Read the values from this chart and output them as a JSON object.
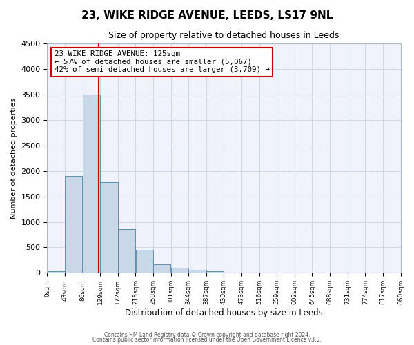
{
  "title": "23, WIKE RIDGE AVENUE, LEEDS, LS17 9NL",
  "subtitle": "Size of property relative to detached houses in Leeds",
  "xlabel": "Distribution of detached houses by size in Leeds",
  "ylabel": "Number of detached properties",
  "bin_edges": [
    0,
    43,
    86,
    129,
    172,
    215,
    258,
    301,
    344,
    387,
    430,
    473,
    516,
    559,
    602,
    645,
    688,
    731,
    774,
    817,
    860
  ],
  "counts": [
    30,
    1900,
    3500,
    1780,
    860,
    450,
    170,
    95,
    55,
    30,
    10,
    5,
    2,
    0,
    0,
    0,
    0,
    0,
    0,
    0
  ],
  "bar_color": "#c8d8e8",
  "bar_edge_color": "#6090b0",
  "vline_x": 125,
  "vline_color": "#cc0000",
  "annotation_line1": "23 WIKE RIDGE AVENUE: 125sqm",
  "annotation_line2": "← 57% of detached houses are smaller (5,067)",
  "annotation_line3": "42% of semi-detached houses are larger (3,709) →",
  "annotation_box_color": "#ffffff",
  "annotation_box_edge_color": "#cc0000",
  "ylim": [
    0,
    4500
  ],
  "yticks": [
    0,
    500,
    1000,
    1500,
    2000,
    2500,
    3000,
    3500,
    4000,
    4500
  ],
  "tick_labels": [
    "0sqm",
    "43sqm",
    "86sqm",
    "129sqm",
    "172sqm",
    "215sqm",
    "258sqm",
    "301sqm",
    "344sqm",
    "387sqm",
    "430sqm",
    "473sqm",
    "516sqm",
    "559sqm",
    "602sqm",
    "645sqm",
    "688sqm",
    "731sqm",
    "774sqm",
    "817sqm",
    "860sqm"
  ],
  "footer1": "Contains HM Land Registry data © Crown copyright and database right 2024.",
  "footer2": "Contains public sector information licensed under the Open Government Licence v3.0.",
  "grid_color": "#d0d8e8",
  "background_color": "#ffffff",
  "plot_bg_color": "#f0f4fa"
}
